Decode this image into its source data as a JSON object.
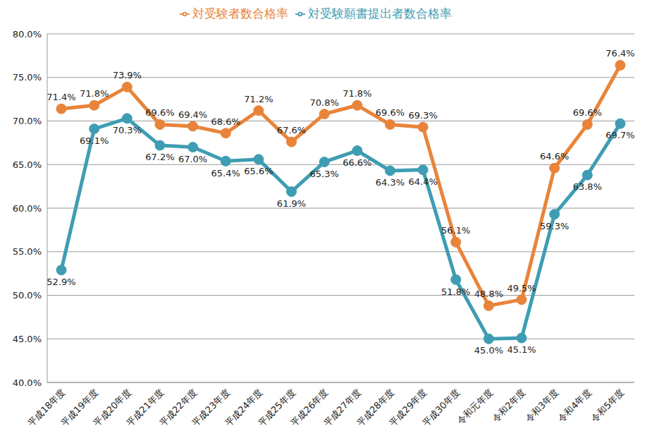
{
  "chart_data": {
    "type": "line",
    "categories": [
      "平成18年度",
      "平成19年度",
      "平成20年度",
      "平成21年度",
      "平成22年度",
      "平成23年度",
      "平成24年度",
      "平成25年度",
      "平成26年度",
      "平成27年度",
      "平成28年度",
      "平成29年度",
      "平成30年度",
      "令和元年度",
      "令和2年度",
      "令和3年度",
      "令和4年度",
      "令和5年度"
    ],
    "series": [
      {
        "name": "対受験願書提出者数合格率",
        "color": "#3e9db3",
        "marker": "circle",
        "values": [
          52.9,
          69.1,
          70.3,
          67.2,
          67.0,
          65.4,
          65.6,
          61.9,
          65.3,
          66.6,
          64.3,
          64.4,
          51.8,
          45.0,
          45.1,
          59.3,
          63.8,
          69.7
        ],
        "value_labels": [
          "52.9%",
          "69.1%",
          "70.3%",
          "67.2%",
          "67.0%",
          "65.4%",
          "65.6%",
          "61.9%",
          "65.3%",
          "66.6%",
          "64.3%",
          "64.4%",
          "51.8%",
          "45.0%",
          "45.1%",
          "59.3%",
          "63.8%",
          "69.7%"
        ]
      },
      {
        "name": "対受験者数合格率",
        "color": "#e8843a",
        "marker": "circle",
        "values": [
          71.4,
          71.8,
          73.9,
          69.6,
          69.4,
          68.6,
          71.2,
          67.6,
          70.8,
          71.8,
          69.6,
          69.3,
          56.1,
          48.8,
          49.5,
          64.6,
          69.6,
          76.4
        ],
        "value_labels": [
          "71.4%",
          "71.8%",
          "73.9%",
          "69.6%",
          "69.4%",
          "68.6%",
          "71.2%",
          "67.6%",
          "70.8%",
          "71.8%",
          "69.6%",
          "69.3%",
          "56.1%",
          "48.8%",
          "49.5%",
          "64.6%",
          "69.6%",
          "76.4%"
        ]
      }
    ],
    "ylim": [
      40,
      80
    ],
    "yticks": [
      {
        "value": 40,
        "label": "40.0%"
      },
      {
        "value": 45,
        "label": "45.0%"
      },
      {
        "value": 50,
        "label": "50.0%"
      },
      {
        "value": 55,
        "label": "55.0%"
      },
      {
        "value": 60,
        "label": "60.0%"
      },
      {
        "value": 65,
        "label": "65.0%"
      },
      {
        "value": 70,
        "label": "70.0%"
      },
      {
        "value": 75,
        "label": "75.0%"
      },
      {
        "value": 80,
        "label": "80.0%"
      }
    ],
    "grid": true,
    "legend": "top",
    "data_labels": true
  }
}
